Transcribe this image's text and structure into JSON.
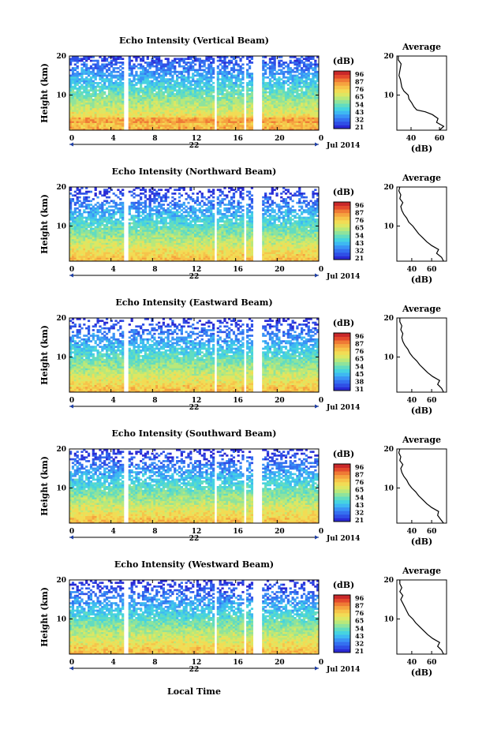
{
  "chart_data": [
    {
      "type": "heatmap",
      "title": "Echo Intensity (Vertical Beam)",
      "ylabel": "Height (km)",
      "xlabel": "Local Time",
      "x_ticks": [
        "0",
        "4",
        "8",
        "12",
        "16",
        "20",
        "0"
      ],
      "xlim": [
        0,
        24
      ],
      "y_ticks": [
        "10",
        "20"
      ],
      "ylim": [
        1,
        20
      ],
      "day_label": "22",
      "date_label": "Jul 2014",
      "colorbar": {
        "label": "(dB)",
        "ticks": [
          "96",
          "87",
          "76",
          "65",
          "54",
          "43",
          "32",
          "21"
        ]
      },
      "gaps_hours": [
        [
          1.0,
          1.2
        ],
        [
          5.3,
          5.7
        ],
        [
          13.9,
          14.2
        ],
        [
          16.8,
          17.1
        ],
        [
          17.6,
          18.6
        ],
        [
          21.3,
          21.45
        ]
      ],
      "average_profile": {
        "title": "Average",
        "xlabel": "(dB)",
        "x_ticks": [
          "40",
          "60"
        ],
        "xlim": [
          30,
          65
        ],
        "y_ticks": [
          "10",
          "20"
        ],
        "ylim": [
          1,
          20
        ],
        "values": [
          [
            60,
            1
          ],
          [
            63,
            2
          ],
          [
            58,
            3
          ],
          [
            59,
            4
          ],
          [
            55,
            5
          ],
          [
            50,
            5.7
          ],
          [
            44,
            6.2
          ],
          [
            42,
            7
          ],
          [
            40.5,
            8
          ],
          [
            38.5,
            9
          ],
          [
            38,
            10
          ],
          [
            35,
            11
          ],
          [
            33.5,
            12
          ],
          [
            33,
            13
          ],
          [
            32.5,
            14
          ],
          [
            31.5,
            15
          ],
          [
            32,
            16
          ],
          [
            32.5,
            17
          ],
          [
            33,
            18
          ],
          [
            31,
            19
          ],
          [
            31,
            20
          ]
        ]
      }
    },
    {
      "type": "heatmap",
      "title": "Echo Intensity (Northward Beam)",
      "ylabel": "Height (km)",
      "xlabel": "Local Time",
      "x_ticks": [
        "0",
        "4",
        "8",
        "12",
        "16",
        "20",
        "0"
      ],
      "xlim": [
        0,
        24
      ],
      "y_ticks": [
        "10",
        "20"
      ],
      "ylim": [
        1,
        20
      ],
      "day_label": "22",
      "date_label": "Jul 2014",
      "colorbar": {
        "label": "(dB)",
        "ticks": [
          "96",
          "87",
          "76",
          "65",
          "54",
          "43",
          "32",
          "21"
        ]
      },
      "gaps_hours": [
        [
          1.0,
          1.2
        ],
        [
          5.3,
          5.7
        ],
        [
          13.9,
          14.2
        ],
        [
          16.8,
          17.1
        ],
        [
          17.6,
          18.6
        ]
      ],
      "average_profile": {
        "title": "Average",
        "xlabel": "(dB)",
        "x_ticks": [
          "40",
          "60"
        ],
        "xlim": [
          25,
          75
        ],
        "y_ticks": [
          "10",
          "20"
        ],
        "ylim": [
          1,
          20
        ],
        "values": [
          [
            72,
            1
          ],
          [
            70,
            2
          ],
          [
            65,
            3
          ],
          [
            67,
            4
          ],
          [
            60,
            5
          ],
          [
            55,
            6
          ],
          [
            51,
            7
          ],
          [
            47,
            8
          ],
          [
            44,
            9
          ],
          [
            41,
            10
          ],
          [
            37,
            11
          ],
          [
            35,
            12
          ],
          [
            32,
            13
          ],
          [
            30,
            14
          ],
          [
            29,
            15
          ],
          [
            31,
            16
          ],
          [
            28,
            17
          ],
          [
            29,
            18
          ],
          [
            27,
            19
          ],
          [
            28,
            20
          ]
        ]
      }
    },
    {
      "type": "heatmap",
      "title": "Echo Intensity (Eastward Beam)",
      "ylabel": "Height (km)",
      "xlabel": "Local Time",
      "x_ticks": [
        "0",
        "4",
        "8",
        "12",
        "16",
        "20",
        "0"
      ],
      "xlim": [
        0,
        24
      ],
      "y_ticks": [
        "10",
        "20"
      ],
      "ylim": [
        1,
        20
      ],
      "day_label": "22",
      "date_label": "Jul 2014",
      "colorbar": {
        "label": "(dB)",
        "ticks": [
          "96",
          "87",
          "76",
          "65",
          "54",
          "45",
          "38",
          "31"
        ]
      },
      "gaps_hours": [
        [
          1.0,
          1.2
        ],
        [
          5.3,
          5.7
        ],
        [
          13.9,
          14.2
        ],
        [
          16.8,
          17.1
        ],
        [
          17.6,
          18.6
        ]
      ],
      "average_profile": {
        "title": "Average",
        "xlabel": "(dB)",
        "x_ticks": [
          "40",
          "60"
        ],
        "xlim": [
          25,
          75
        ],
        "y_ticks": [
          "10",
          "20"
        ],
        "ylim": [
          1,
          20
        ],
        "values": [
          [
            72,
            1
          ],
          [
            70,
            2
          ],
          [
            66,
            3
          ],
          [
            68,
            4
          ],
          [
            61,
            5
          ],
          [
            56,
            6
          ],
          [
            52,
            7
          ],
          [
            48,
            8
          ],
          [
            45,
            9
          ],
          [
            41,
            10
          ],
          [
            38,
            11
          ],
          [
            36,
            12
          ],
          [
            33,
            13
          ],
          [
            31,
            14
          ],
          [
            30,
            15
          ],
          [
            31,
            16
          ],
          [
            29,
            17
          ],
          [
            30,
            18
          ],
          [
            28,
            19
          ],
          [
            28,
            20
          ]
        ]
      }
    },
    {
      "type": "heatmap",
      "title": "Echo Intensity (Southward Beam)",
      "ylabel": "Height (km)",
      "xlabel": "Local Time",
      "x_ticks": [
        "0",
        "4",
        "8",
        "12",
        "16",
        "20",
        "0"
      ],
      "xlim": [
        0,
        24
      ],
      "y_ticks": [
        "10",
        "20"
      ],
      "ylim": [
        1,
        20
      ],
      "day_label": "22",
      "date_label": "Jul 2014",
      "colorbar": {
        "label": "(dB)",
        "ticks": [
          "96",
          "87",
          "76",
          "65",
          "54",
          "43",
          "32",
          "21"
        ]
      },
      "gaps_hours": [
        [
          1.0,
          1.2
        ],
        [
          5.3,
          5.7
        ],
        [
          13.9,
          14.2
        ],
        [
          16.8,
          17.1
        ],
        [
          17.6,
          18.6
        ]
      ],
      "average_profile": {
        "title": "Average",
        "xlabel": "(dB)",
        "x_ticks": [
          "40",
          "60"
        ],
        "xlim": [
          25,
          75
        ],
        "y_ticks": [
          "10",
          "20"
        ],
        "ylim": [
          1,
          20
        ],
        "values": [
          [
            72,
            1
          ],
          [
            69,
            2
          ],
          [
            66,
            3
          ],
          [
            67,
            4
          ],
          [
            60,
            5
          ],
          [
            55,
            6
          ],
          [
            51,
            7
          ],
          [
            47,
            8
          ],
          [
            44,
            9
          ],
          [
            40,
            10
          ],
          [
            37,
            11
          ],
          [
            35,
            12
          ],
          [
            32,
            13
          ],
          [
            30,
            14
          ],
          [
            29,
            15
          ],
          [
            31,
            16
          ],
          [
            28,
            17
          ],
          [
            29,
            18
          ],
          [
            27,
            19
          ],
          [
            28,
            20
          ]
        ]
      }
    },
    {
      "type": "heatmap",
      "title": "Echo Intensity (Westward Beam)",
      "ylabel": "Height (km)",
      "xlabel": "Local Time",
      "x_ticks": [
        "0",
        "4",
        "8",
        "12",
        "16",
        "20",
        "0"
      ],
      "xlim": [
        0,
        24
      ],
      "y_ticks": [
        "10",
        "20"
      ],
      "ylim": [
        1,
        20
      ],
      "day_label": "22",
      "date_label": "Jul 2014",
      "colorbar": {
        "label": "(dB)",
        "ticks": [
          "96",
          "87",
          "76",
          "65",
          "54",
          "43",
          "32",
          "21"
        ]
      },
      "gaps_hours": [
        [
          1.0,
          1.2
        ],
        [
          5.3,
          5.7
        ],
        [
          13.9,
          14.2
        ],
        [
          16.8,
          17.1
        ],
        [
          17.6,
          18.6
        ],
        [
          21.3,
          21.45
        ]
      ],
      "average_profile": {
        "title": "Average",
        "xlabel": "(dB)",
        "x_ticks": [
          "40",
          "60"
        ],
        "xlim": [
          25,
          75
        ],
        "y_ticks": [
          "10",
          "20"
        ],
        "ylim": [
          1,
          20
        ],
        "values": [
          [
            72,
            1
          ],
          [
            70,
            2
          ],
          [
            66,
            3
          ],
          [
            68,
            4
          ],
          [
            61,
            5
          ],
          [
            56,
            6
          ],
          [
            52,
            7
          ],
          [
            48,
            8
          ],
          [
            44,
            9
          ],
          [
            41,
            10
          ],
          [
            37,
            11
          ],
          [
            35,
            12
          ],
          [
            33,
            13
          ],
          [
            31,
            14
          ],
          [
            29,
            15
          ],
          [
            31,
            16
          ],
          [
            28,
            17
          ],
          [
            30,
            18
          ],
          [
            28,
            19
          ],
          [
            28,
            20
          ]
        ]
      }
    }
  ],
  "figure": {
    "bottom_xlabel": "Local Time"
  },
  "colormap": [
    "#2a2ad4",
    "#2f4fe6",
    "#3470f0",
    "#3a93f5",
    "#3eb8f2",
    "#46d3e0",
    "#62dcc0",
    "#8fe39c",
    "#b9e87a",
    "#dde763",
    "#f2dc55",
    "#f6c44a",
    "#f5a33f",
    "#ef7a35",
    "#e3492d",
    "#c9282a"
  ]
}
